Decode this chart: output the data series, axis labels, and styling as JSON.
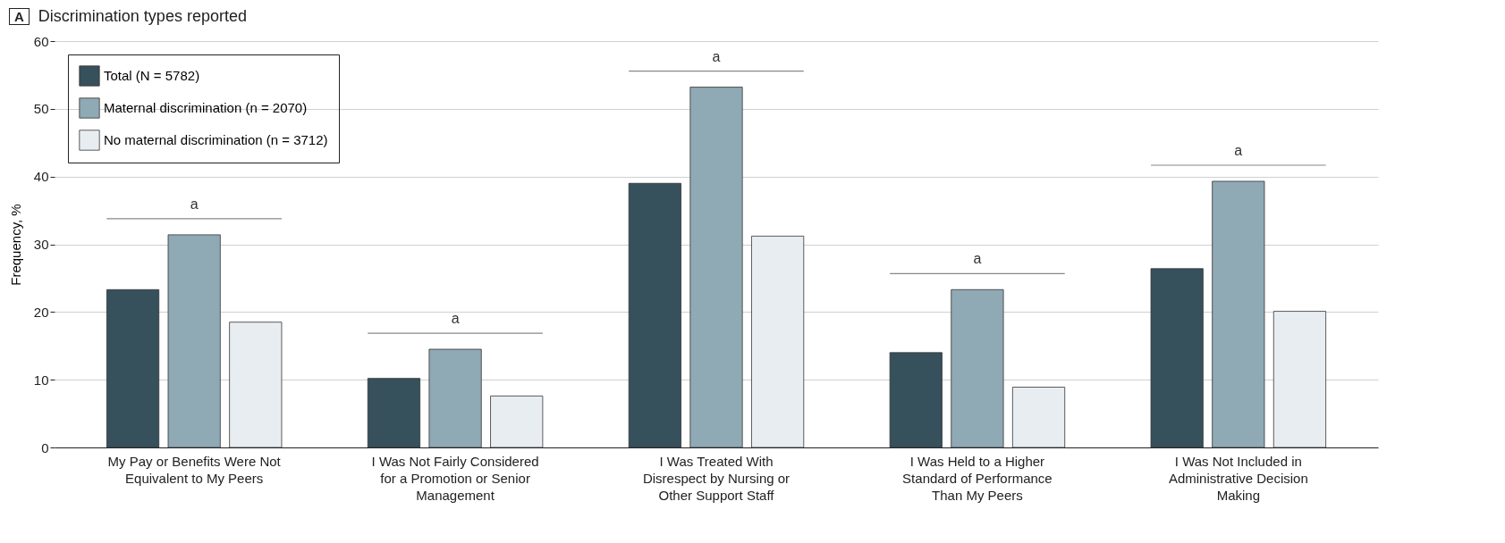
{
  "chart_data": {
    "type": "bar",
    "title": "Discrimination types reported",
    "ylabel": "Frequency, %",
    "categories": [
      "My Pay or Benefits Were Not Equivalent to My Peers",
      "I Was Not Fairly Considered for a Promotion or Senior Management",
      "I Was Treated With Disrespect by Nursing or Other Support Staff",
      "I Was Held to a Higher Standard of Performance Than My Peers",
      "I Was Not Included in Administrative Decision Making"
    ],
    "series": [
      {
        "name": "Total (N = 5782)",
        "color": "#36505c",
        "values": [
          23.3,
          10.2,
          39.0,
          14.0,
          26.4
        ]
      },
      {
        "name": "Maternal discrimination (n = 2070)",
        "color": "#8fa9b5",
        "values": [
          31.4,
          14.5,
          53.2,
          23.3,
          39.3
        ]
      },
      {
        "name": "No maternal discrimination (n = 3712)",
        "color": "#e8edf2",
        "values": [
          18.5,
          7.6,
          31.2,
          8.9,
          20.1
        ]
      }
    ],
    "ylim": [
      0,
      60
    ],
    "yticks": [
      0,
      10,
      20,
      30,
      40,
      50,
      60
    ],
    "grid": "y",
    "legend": "top left",
    "annotations": [
      "A",
      "a",
      "a",
      "a",
      "a",
      "a"
    ]
  }
}
